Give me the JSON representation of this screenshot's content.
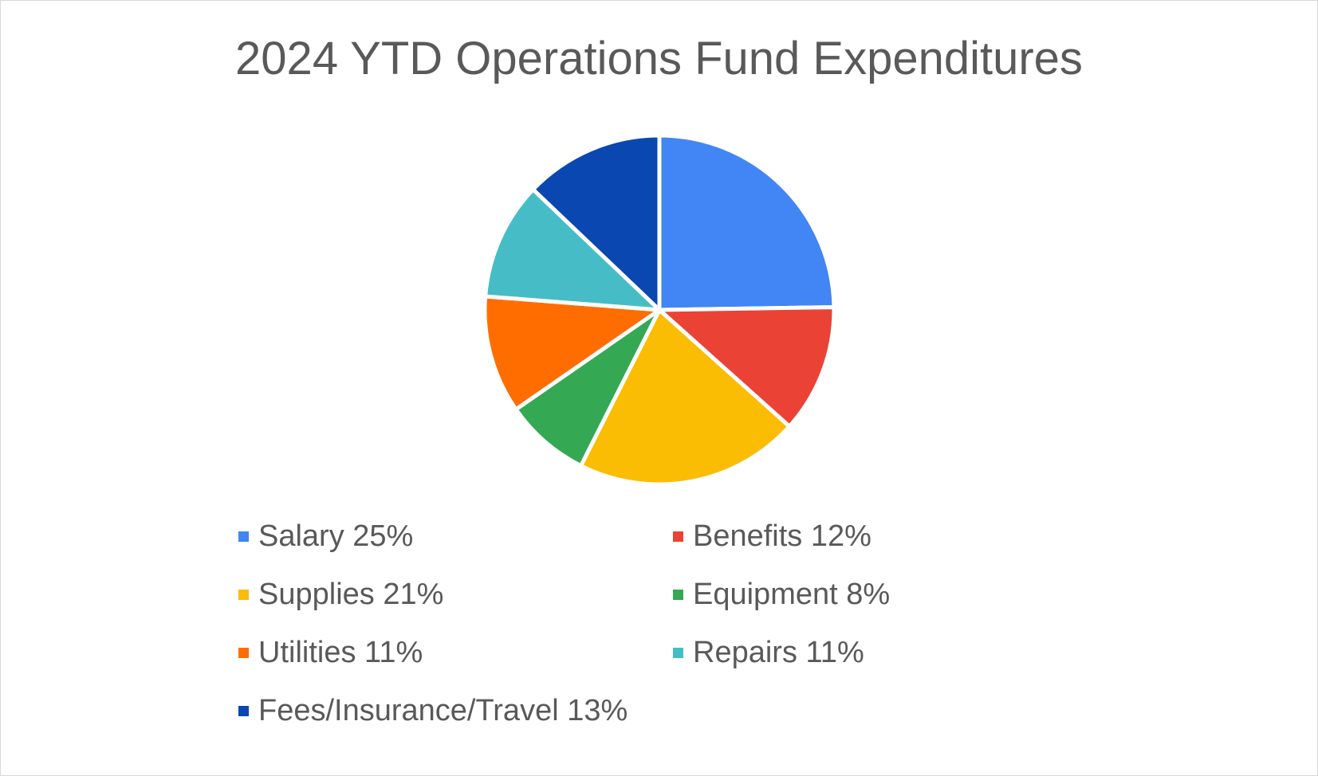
{
  "chart_data": {
    "type": "pie",
    "title": "2024 YTD Operations Fund Expenditures",
    "legend_position": "bottom",
    "categories": [
      "Salary",
      "Benefits",
      "Supplies",
      "Equipment",
      "Utilities",
      "Repairs",
      "Fees/Insurance/Travel"
    ],
    "values": [
      25,
      12,
      21,
      8,
      11,
      11,
      13
    ],
    "unit": "%",
    "legend_labels": [
      "Salary 25%",
      "Benefits 12%",
      "Supplies 21%",
      "Equipment 8%",
      "Utilities 11%",
      "Repairs 11%",
      "Fees/Insurance/Travel 13%"
    ],
    "colors": [
      "#4285f4",
      "#ea4335",
      "#fbbc04",
      "#34a853",
      "#ff6d01",
      "#46bdc6",
      "#0b47b0"
    ]
  }
}
